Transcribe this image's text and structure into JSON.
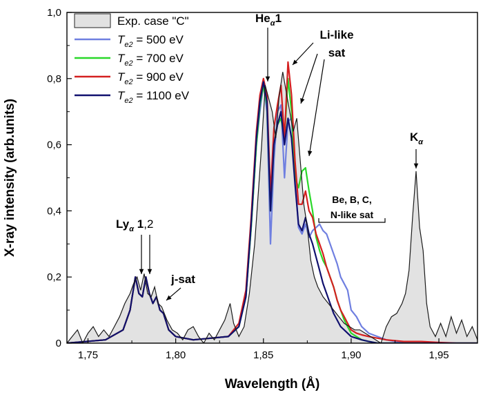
{
  "chart_data": {
    "type": "line",
    "xlabel": "Wavelength (Å)",
    "ylabel": "X-ray intensity (arb.units)",
    "xlim": [
      1.738,
      1.972
    ],
    "ylim": [
      0,
      1.0
    ],
    "x_ticks": [
      1.75,
      1.8,
      1.85,
      1.9,
      1.95
    ],
    "x_tick_labels": [
      "1,75",
      "1,80",
      "1,85",
      "1,90",
      "1,95"
    ],
    "y_ticks": [
      0,
      0.2,
      0.4,
      0.6,
      0.8,
      1.0
    ],
    "y_tick_labels": [
      "0",
      "0,2",
      "0,4",
      "0,6",
      "0,8",
      "1,0"
    ],
    "grid": false,
    "legend": {
      "placement": "top-left",
      "entries": [
        {
          "label": "Exp. case \"C\"",
          "kind": "area",
          "color": "#bdbdbd"
        },
        {
          "label_main": "T",
          "label_sub": "e2",
          "label_rest": " = 500 eV",
          "kind": "line",
          "color": "#6f7fe0"
        },
        {
          "label_main": "T",
          "label_sub": "e2",
          "label_rest": " = 700 eV",
          "kind": "line",
          "color": "#29d829"
        },
        {
          "label_main": "T",
          "label_sub": "e2",
          "label_rest": " = 900 eV",
          "kind": "line",
          "color": "#d42020"
        },
        {
          "label_main": "T",
          "label_sub": "e2",
          "label_rest": " = 1100 eV",
          "kind": "line",
          "color": "#10106e"
        }
      ]
    },
    "annotations": {
      "he": {
        "main": "He",
        "sub": "α",
        "rest": "1"
      },
      "li": {
        "line1": "Li-like",
        "line2": "sat"
      },
      "ly": {
        "main": "Ly",
        "sub": "α",
        "rest": " 1",
        "rest2": ",2"
      },
      "jsat": "j-sat",
      "be": {
        "line1": "Be, B, C,",
        "line2": "N-like sat"
      },
      "ka": {
        "main": "K",
        "sub": "α"
      }
    },
    "experimental": {
      "name": "Exp. case \"C\"",
      "x": [
        1.738,
        1.741,
        1.744,
        1.747,
        1.75,
        1.753,
        1.756,
        1.759,
        1.762,
        1.765,
        1.768,
        1.771,
        1.774,
        1.776,
        1.778,
        1.78,
        1.782,
        1.784,
        1.786,
        1.788,
        1.79,
        1.792,
        1.795,
        1.798,
        1.801,
        1.804,
        1.807,
        1.81,
        1.813,
        1.816,
        1.819,
        1.822,
        1.825,
        1.828,
        1.831,
        1.833,
        1.836,
        1.839,
        1.842,
        1.845,
        1.847,
        1.849,
        1.851,
        1.853,
        1.855,
        1.857,
        1.859,
        1.861,
        1.863,
        1.865,
        1.867,
        1.869,
        1.871,
        1.873,
        1.875,
        1.877,
        1.879,
        1.881,
        1.884,
        1.887,
        1.89,
        1.893,
        1.896,
        1.899,
        1.902,
        1.905,
        1.908,
        1.911,
        1.914,
        1.917,
        1.92,
        1.923,
        1.926,
        1.929,
        1.931,
        1.933,
        1.935,
        1.937,
        1.939,
        1.941,
        1.943,
        1.945,
        1.948,
        1.951,
        1.954,
        1.957,
        1.96,
        1.963,
        1.966,
        1.969,
        1.972
      ],
      "y": [
        0.0,
        0.02,
        0.04,
        0.0,
        0.03,
        0.05,
        0.02,
        0.04,
        0.02,
        0.05,
        0.08,
        0.12,
        0.15,
        0.18,
        0.2,
        0.16,
        0.21,
        0.15,
        0.14,
        0.17,
        0.12,
        0.11,
        0.07,
        0.04,
        0.03,
        0.01,
        0.04,
        0.05,
        0.02,
        0.0,
        0.03,
        0.01,
        0.04,
        0.07,
        0.12,
        0.06,
        0.02,
        0.05,
        0.15,
        0.3,
        0.45,
        0.6,
        0.78,
        0.74,
        0.7,
        0.62,
        0.75,
        0.82,
        0.76,
        0.7,
        0.64,
        0.68,
        0.55,
        0.42,
        0.35,
        0.25,
        0.2,
        0.17,
        0.14,
        0.12,
        0.1,
        0.08,
        0.06,
        0.05,
        0.04,
        0.04,
        0.03,
        0.02,
        0.01,
        0.0,
        0.05,
        0.08,
        0.09,
        0.12,
        0.15,
        0.22,
        0.38,
        0.52,
        0.35,
        0.28,
        0.12,
        0.05,
        0.02,
        0.06,
        0.02,
        0.08,
        0.03,
        0.07,
        0.02,
        0.05,
        0.01
      ]
    },
    "series": [
      {
        "name_main": "T",
        "name_sub": "e2",
        "name_rest": " = 500 eV",
        "color": "#6f7fe0",
        "x": [
          1.738,
          1.76,
          1.77,
          1.774,
          1.777,
          1.779,
          1.781,
          1.783,
          1.785,
          1.787,
          1.789,
          1.791,
          1.793,
          1.796,
          1.8,
          1.81,
          1.82,
          1.83,
          1.836,
          1.84,
          1.843,
          1.846,
          1.848,
          1.85,
          1.852,
          1.854,
          1.856,
          1.858,
          1.86,
          1.862,
          1.864,
          1.866,
          1.868,
          1.87,
          1.872,
          1.874,
          1.876,
          1.878,
          1.88,
          1.882,
          1.884,
          1.886,
          1.888,
          1.89,
          1.892,
          1.894,
          1.896,
          1.898,
          1.9,
          1.903,
          1.906,
          1.91,
          1.915,
          1.92,
          1.93,
          1.94,
          1.95,
          1.96,
          1.972
        ],
        "y": [
          0.0,
          0.01,
          0.04,
          0.1,
          0.2,
          0.15,
          0.14,
          0.2,
          0.15,
          0.12,
          0.14,
          0.1,
          0.09,
          0.04,
          0.02,
          0.01,
          0.015,
          0.02,
          0.05,
          0.14,
          0.35,
          0.6,
          0.7,
          0.78,
          0.7,
          0.3,
          0.55,
          0.7,
          0.72,
          0.5,
          0.67,
          0.68,
          0.5,
          0.35,
          0.33,
          0.36,
          0.32,
          0.34,
          0.35,
          0.36,
          0.34,
          0.33,
          0.3,
          0.27,
          0.24,
          0.2,
          0.18,
          0.16,
          0.1,
          0.08,
          0.05,
          0.03,
          0.02,
          0.01,
          0.0,
          0.0,
          0.0,
          0.0,
          0.0
        ]
      },
      {
        "name_main": "T",
        "name_sub": "e2",
        "name_rest": " = 700 eV",
        "color": "#29d829",
        "x": [
          1.738,
          1.76,
          1.77,
          1.774,
          1.777,
          1.779,
          1.781,
          1.783,
          1.785,
          1.787,
          1.789,
          1.791,
          1.793,
          1.796,
          1.8,
          1.81,
          1.82,
          1.83,
          1.836,
          1.84,
          1.843,
          1.846,
          1.848,
          1.85,
          1.852,
          1.854,
          1.856,
          1.858,
          1.86,
          1.862,
          1.864,
          1.866,
          1.868,
          1.87,
          1.872,
          1.874,
          1.876,
          1.878,
          1.88,
          1.882,
          1.884,
          1.886,
          1.888,
          1.89,
          1.892,
          1.894,
          1.896,
          1.898,
          1.9,
          1.903,
          1.906,
          1.91,
          1.915,
          1.92,
          1.93,
          1.94,
          1.95,
          1.96,
          1.972
        ],
        "y": [
          0.0,
          0.01,
          0.04,
          0.1,
          0.2,
          0.15,
          0.14,
          0.2,
          0.15,
          0.12,
          0.14,
          0.1,
          0.09,
          0.04,
          0.02,
          0.01,
          0.015,
          0.02,
          0.05,
          0.14,
          0.35,
          0.6,
          0.72,
          0.78,
          0.72,
          0.4,
          0.6,
          0.66,
          0.68,
          0.62,
          0.8,
          0.7,
          0.5,
          0.47,
          0.52,
          0.53,
          0.46,
          0.4,
          0.32,
          0.28,
          0.25,
          0.23,
          0.2,
          0.17,
          0.13,
          0.1,
          0.07,
          0.05,
          0.03,
          0.02,
          0.01,
          0.005,
          0.0,
          0.0,
          0.0,
          0.0,
          0.0,
          0.0,
          0.0
        ]
      },
      {
        "name_main": "T",
        "name_sub": "e2",
        "name_rest": " = 900 eV",
        "color": "#d42020",
        "x": [
          1.738,
          1.76,
          1.77,
          1.774,
          1.777,
          1.779,
          1.781,
          1.783,
          1.785,
          1.787,
          1.789,
          1.791,
          1.793,
          1.796,
          1.8,
          1.81,
          1.82,
          1.83,
          1.836,
          1.84,
          1.843,
          1.846,
          1.848,
          1.85,
          1.852,
          1.854,
          1.856,
          1.858,
          1.86,
          1.862,
          1.864,
          1.866,
          1.868,
          1.87,
          1.872,
          1.874,
          1.876,
          1.878,
          1.88,
          1.882,
          1.884,
          1.886,
          1.888,
          1.89,
          1.892,
          1.894,
          1.896,
          1.898,
          1.9,
          1.903,
          1.906,
          1.91,
          1.915,
          1.92,
          1.93,
          1.94,
          1.95,
          1.96,
          1.972
        ],
        "y": [
          0.0,
          0.01,
          0.04,
          0.1,
          0.2,
          0.15,
          0.14,
          0.2,
          0.15,
          0.12,
          0.14,
          0.1,
          0.09,
          0.04,
          0.02,
          0.01,
          0.015,
          0.02,
          0.06,
          0.16,
          0.38,
          0.64,
          0.75,
          0.8,
          0.75,
          0.45,
          0.65,
          0.72,
          0.78,
          0.62,
          0.85,
          0.75,
          0.55,
          0.42,
          0.42,
          0.46,
          0.4,
          0.38,
          0.33,
          0.3,
          0.27,
          0.23,
          0.2,
          0.17,
          0.13,
          0.1,
          0.08,
          0.06,
          0.04,
          0.03,
          0.025,
          0.02,
          0.015,
          0.01,
          0.005,
          0.005,
          0.002,
          0.0,
          0.0
        ]
      },
      {
        "name_main": "T",
        "name_sub": "e2",
        "name_rest": " = 1100 eV",
        "color": "#10106e",
        "x": [
          1.738,
          1.76,
          1.77,
          1.774,
          1.777,
          1.779,
          1.781,
          1.783,
          1.785,
          1.787,
          1.789,
          1.791,
          1.793,
          1.796,
          1.8,
          1.81,
          1.82,
          1.83,
          1.836,
          1.84,
          1.843,
          1.846,
          1.848,
          1.85,
          1.852,
          1.854,
          1.856,
          1.858,
          1.86,
          1.862,
          1.864,
          1.866,
          1.868,
          1.87,
          1.872,
          1.874,
          1.876,
          1.878,
          1.88,
          1.882,
          1.884,
          1.886,
          1.888,
          1.89,
          1.892,
          1.894,
          1.896,
          1.898,
          1.9,
          1.903,
          1.906,
          1.91,
          1.915,
          1.92,
          1.93,
          1.94,
          1.95,
          1.96,
          1.972
        ],
        "y": [
          0.0,
          0.01,
          0.04,
          0.1,
          0.2,
          0.15,
          0.14,
          0.2,
          0.15,
          0.12,
          0.14,
          0.1,
          0.09,
          0.04,
          0.02,
          0.01,
          0.015,
          0.02,
          0.05,
          0.14,
          0.36,
          0.62,
          0.73,
          0.79,
          0.73,
          0.4,
          0.6,
          0.66,
          0.7,
          0.6,
          0.68,
          0.62,
          0.48,
          0.36,
          0.34,
          0.38,
          0.33,
          0.3,
          0.26,
          0.22,
          0.18,
          0.15,
          0.12,
          0.09,
          0.07,
          0.05,
          0.04,
          0.03,
          0.02,
          0.015,
          0.01,
          0.005,
          0.0,
          0.0,
          0.0,
          0.0,
          0.0,
          0.0,
          0.0
        ]
      }
    ]
  }
}
